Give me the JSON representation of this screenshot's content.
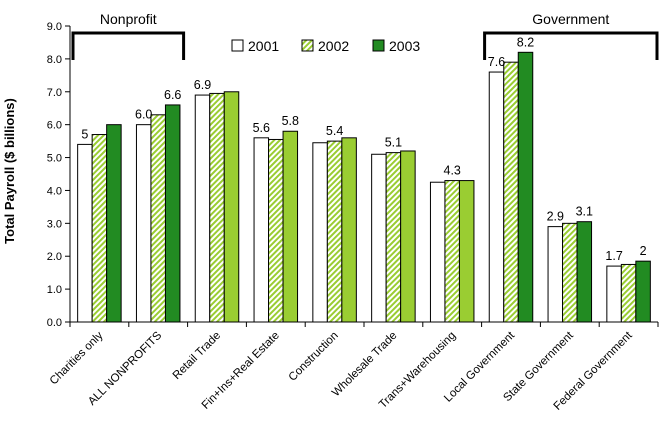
{
  "chart_data": {
    "type": "bar",
    "title": "",
    "xlabel": "",
    "ylabel": "Total Payroll ($ billions)",
    "ylim": [
      0,
      9
    ],
    "yticks": [
      "0.0",
      "1.0",
      "2.0",
      "3.0",
      "4.0",
      "5.0",
      "6.0",
      "7.0",
      "8.0",
      "9.0"
    ],
    "categories": [
      "Charities only",
      "ALL NONPROFITS",
      "Retail Trade",
      "Fin+Ins+Real Estate",
      "Construction",
      "Wholesale Trade",
      "Trans+Warehousing",
      "Local Government",
      "State Government",
      "Federal Government"
    ],
    "series": [
      {
        "name": "2001",
        "values": [
          5.4,
          6.0,
          6.9,
          5.6,
          5.45,
          5.1,
          4.25,
          7.6,
          2.9,
          1.7
        ]
      },
      {
        "name": "2002",
        "values": [
          5.7,
          6.3,
          6.95,
          5.55,
          5.5,
          5.15,
          4.3,
          7.9,
          3.0,
          1.75
        ]
      },
      {
        "name": "2003",
        "values": [
          6.0,
          6.6,
          7.0,
          5.8,
          5.6,
          5.2,
          4.3,
          8.2,
          3.05,
          1.85
        ]
      }
    ],
    "data_labels": [
      {
        "category": 0,
        "text": "5"
      },
      {
        "category": 1,
        "text": "6.0"
      },
      {
        "category": 1,
        "text": "6.6"
      },
      {
        "category": 2,
        "text": "6.9"
      },
      {
        "category": 3,
        "text": "5.6"
      },
      {
        "category": 3,
        "text": "5.8"
      },
      {
        "category": 4,
        "text": "5.4"
      },
      {
        "category": 5,
        "text": "5.1"
      },
      {
        "category": 6,
        "text": "4.3"
      },
      {
        "category": 7,
        "text": "7.6"
      },
      {
        "category": 7,
        "text": "8.2"
      },
      {
        "category": 8,
        "text": "2.9"
      },
      {
        "category": 8,
        "text": "3.1"
      },
      {
        "category": 9,
        "text": "1.7"
      },
      {
        "category": 9,
        "text": "2"
      }
    ],
    "group_brackets": [
      {
        "label": "Nonprofit",
        "from": 0,
        "to": 1
      },
      {
        "label": "Government",
        "from": 7,
        "to": 9
      }
    ],
    "legend_position": "top-center",
    "grid": false,
    "colors": {
      "2001": "#ffffff",
      "2002": "#9acd32",
      "2003_fill": "#228b22",
      "green_bars": "#9acd32",
      "outline": "#000000"
    }
  }
}
